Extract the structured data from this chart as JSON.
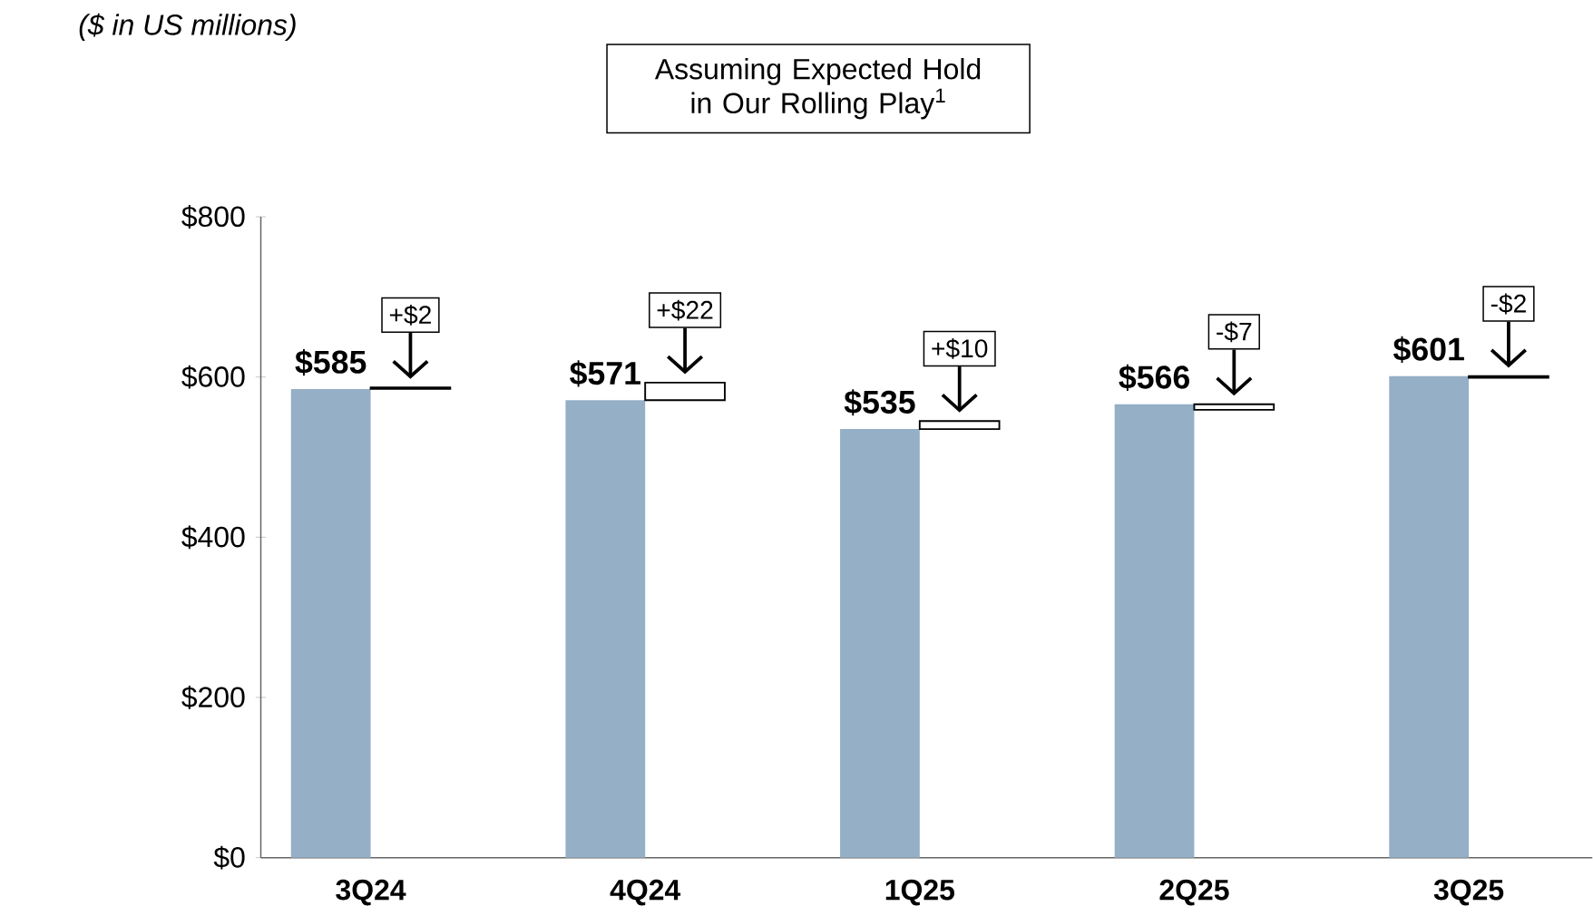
{
  "chart_data": {
    "type": "bar",
    "subtitle": "*($ in US millions)*",
    "annotations": [
      "Assuming Expected Hold in Our Rolling Play$^{1}$"
    ],
    "categories": [
      "3Q24",
      "4Q24",
      "1Q25",
      "2Q25",
      "3Q25"
    ],
    "series": [
      {
        "color": "#94afc6",
        "values": [
          585,
          571,
          535,
          566,
          601
        ],
        "value_labels": [
          "$585",
          "$571",
          "$535",
          "$566",
          "$601"
        ]
      },
      {
        "color": "#ffffff",
        "values": [
          2,
          22,
          10,
          -7,
          -2
        ],
        "base": [
          585,
          571,
          535,
          566,
          601
        ],
        "value_labels": [
          "+$2",
          "+$22",
          "+$10",
          "-$7",
          "-$2"
        ]
      }
    ],
    "ylim": [
      0,
      800
    ],
    "yticks": [
      {
        "value": 0,
        "label": "$0"
      },
      {
        "value": 200,
        "label": "$200"
      },
      {
        "value": 400,
        "label": "$400"
      },
      {
        "value": 600,
        "label": "$600"
      },
      {
        "value": 800,
        "label": "$800"
      }
    ]
  }
}
